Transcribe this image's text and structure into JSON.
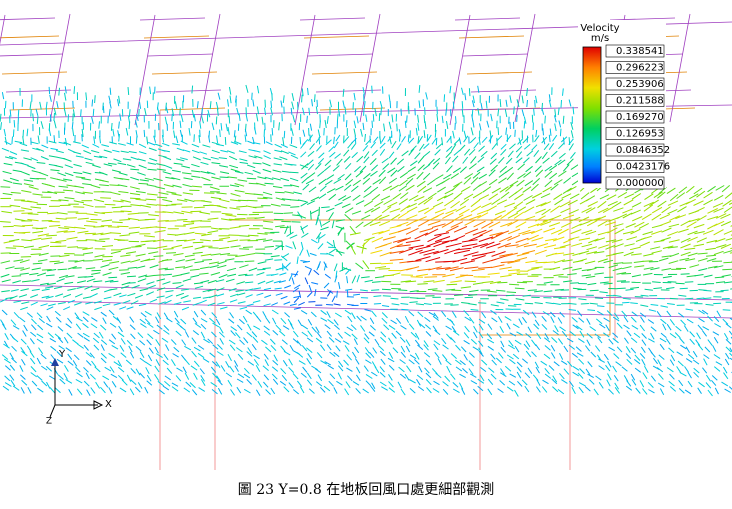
{
  "figure": {
    "legend": {
      "title": "Velocity",
      "unit": "m/s",
      "labels": [
        "0.338541",
        "0.296223",
        "0.253906",
        "0.211588",
        "0.169270",
        "0.126953",
        "0.0846352",
        "0.0423176",
        "0.000000"
      ]
    },
    "axes": {
      "x": "X",
      "y": "Y",
      "z": "Z"
    },
    "caption": "圖 23 Y=0.8 在地板回風口處更細部觀測"
  }
}
